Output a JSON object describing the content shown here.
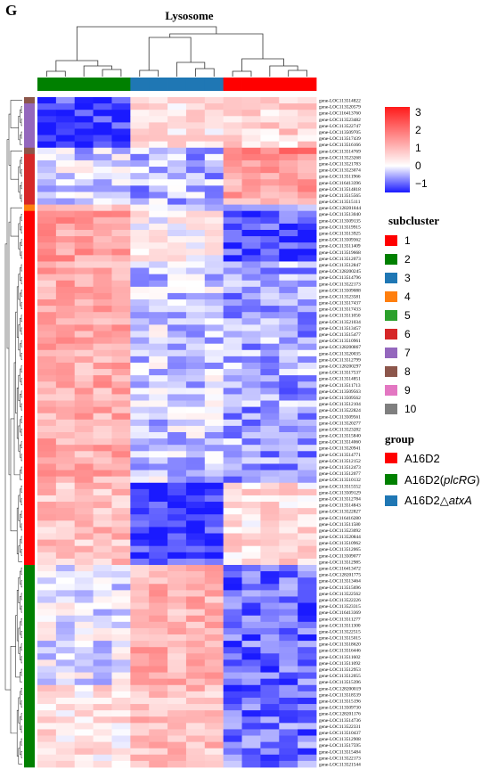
{
  "panel_letter": "G",
  "colors": {
    "low": "#1a1aff",
    "mid": "#ffffff",
    "high": "#ff1a1a",
    "subcluster": {
      "1": "#ff0000",
      "2": "#008000",
      "3": "#1f77b4",
      "4": "#ff7f0e",
      "5": "#2ca02c",
      "6": "#d62728",
      "7": "#9467bd",
      "8": "#8c564b",
      "9": "#e377c2",
      "10": "#7f7f7f"
    },
    "group": {
      "A16D2": "#ff0000",
      "A16D2(plcRG)": "#008000",
      "A16D2△atxA": "#1f77b4"
    }
  },
  "chart_data": {
    "type": "heatmap",
    "title": "Lysosome",
    "color_scale": {
      "min": -1.5,
      "max": 3.3,
      "ticks": [
        "3",
        "2",
        "1",
        "0",
        "−1"
      ],
      "tick_values": [
        3,
        2,
        1,
        0,
        -1
      ]
    },
    "columns": [
      {
        "group": "A16D2(plcRG)"
      },
      {
        "group": "A16D2(plcRG)"
      },
      {
        "group": "A16D2(plcRG)"
      },
      {
        "group": "A16D2(plcRG)"
      },
      {
        "group": "A16D2(plcRG)"
      },
      {
        "group": "A16D2△atxA"
      },
      {
        "group": "A16D2△atxA"
      },
      {
        "group": "A16D2△atxA"
      },
      {
        "group": "A16D2△atxA"
      },
      {
        "group": "A16D2△atxA"
      },
      {
        "group": "A16D2"
      },
      {
        "group": "A16D2"
      },
      {
        "group": "A16D2"
      },
      {
        "group": "A16D2"
      },
      {
        "group": "A16D2"
      }
    ],
    "genes": [
      "gene-LOC113514822",
      "gene-LOC113520579",
      "gene-LOC116413760",
      "gene-LOC113523482",
      "gene-LOC113522747",
      "gene-LOC113509705",
      "gene-LOC113517439",
      "gene-LOC113516166",
      "gene-LOC113514769",
      "gene-LOC113523268",
      "gene-LOC113521783",
      "gene-LOC113523074",
      "gene-LOC113511966",
      "gene-LOC116413396",
      "gene-LOC113514818",
      "gene-LOC113515565",
      "gene-LOC113515111",
      "gene-LOC128201844",
      "gene-LOC113513040",
      "gene-LOC113509135",
      "gene-LOC113519915",
      "gene-LOC113513925",
      "gene-LOC113509362",
      "gene-LOC113511409",
      "gene-LOC113519668",
      "gene-LOC113512073",
      "gene-LOC113512847",
      "gene-LOC128200245",
      "gene-LOC113514796",
      "gene-LOC113522173",
      "gene-LOC113509088",
      "gene-LOC113523581",
      "gene-LOC113517437",
      "gene-LOC113517433",
      "gene-LOC113511050",
      "gene-LOC113521034",
      "gene-LOC113513457",
      "gene-LOC113515477",
      "gene-LOC113510961",
      "gene-LOC128200867",
      "gene-LOC113520035",
      "gene-LOC113512799",
      "gene-LOC128200297",
      "gene-LOC113517537",
      "gene-LOC113514851",
      "gene-LOC113511713",
      "gene-LOC113509563",
      "gene-LOC113509562",
      "gene-LOC113512104",
      "gene-LOC113522824",
      "gene-LOC113509561",
      "gene-LOC113520277",
      "gene-LOC113523282",
      "gene-LOC113515840",
      "gene-LOC113514060",
      "gene-LOC113520941",
      "gene-LOC113514771",
      "gene-LOC113512152",
      "gene-LOC113512473",
      "gene-LOC113512077",
      "gene-LOC113510132",
      "gene-LOC113515552",
      "gene-LOC113509129",
      "gene-LOC113512784",
      "gene-LOC113514843",
      "gene-LOC113522827",
      "gene-LOC116416280",
      "gene-LOC113511580",
      "gene-LOC113523092",
      "gene-LOC113520844",
      "gene-LOC113510962",
      "gene-LOC113512065",
      "gene-LOC113509077",
      "gene-LOC113512985",
      "gene-LOC116413472",
      "gene-LOC128201775",
      "gene-LOC113513464",
      "gene-LOC113515696",
      "gene-LOC113522562",
      "gene-LOC113522226",
      "gene-LOC113523315",
      "gene-LOC116413369",
      "gene-LOC113511277",
      "gene-LOC113511300",
      "gene-LOC113522515",
      "gene-LOC113515015",
      "gene-LOC113518620",
      "gene-LOC113516446",
      "gene-LOC113511602",
      "gene-LOC113511092",
      "gene-LOC113512953",
      "gene-LOC113512055",
      "gene-LOC113515396",
      "gene-LOC128200019",
      "gene-LOC113518539",
      "gene-LOC113515196",
      "gene-LOC113509730",
      "gene-LOC128201176",
      "gene-LOC113514736",
      "gene-LOC113522331",
      "gene-LOC113510437",
      "gene-LOC113512908",
      "gene-LOC113517595",
      "gene-LOC113515484",
      "gene-LOC113522173",
      "gene-LOC113521544"
    ],
    "subcluster_legend": {
      "title": "subcluster",
      "items": [
        "1",
        "2",
        "3",
        "4",
        "5",
        "6",
        "7",
        "8",
        "9",
        "10"
      ]
    },
    "group_legend": {
      "title": "group",
      "items": [
        {
          "prefix": "A16D2",
          "italic": "",
          "suffix": "",
          "key": "A16D2"
        },
        {
          "prefix": "A16D2(",
          "italic": "plcRG",
          "suffix": ")",
          "key": "A16D2(plcRG)"
        },
        {
          "prefix": "A16D2△",
          "italic": "atxA",
          "suffix": "",
          "key": "A16D2△atxA"
        }
      ]
    },
    "row_blocks": [
      {
        "subcluster": "8",
        "start": 0,
        "end": 1,
        "means": [
          -1.2,
          0.5,
          0.6
        ]
      },
      {
        "subcluster": "7",
        "start": 1,
        "end": 8,
        "means": [
          -1.3,
          0.4,
          0.6
        ]
      },
      {
        "subcluster": "8",
        "start": 8,
        "end": 9,
        "means": [
          -0.3,
          -0.6,
          2.0
        ]
      },
      {
        "subcluster": "6",
        "start": 9,
        "end": 17,
        "means": [
          -0.2,
          -0.5,
          1.3
        ]
      },
      {
        "subcluster": "4",
        "start": 17,
        "end": 18,
        "means": [
          0.6,
          -0.4,
          -0.6
        ]
      },
      {
        "subcluster": "1",
        "start": 18,
        "end": 26,
        "means": [
          1.4,
          0.1,
          -1.1
        ]
      },
      {
        "subcluster": "1",
        "start": 26,
        "end": 61,
        "means": [
          1.2,
          -0.3,
          -0.6
        ]
      },
      {
        "subcluster": "1",
        "start": 61,
        "end": 74,
        "means": [
          0.9,
          -1.3,
          0.5
        ]
      },
      {
        "subcluster": "2",
        "start": 74,
        "end": 93,
        "means": [
          -0.1,
          1.1,
          -1.0
        ]
      },
      {
        "subcluster": "2",
        "start": 93,
        "end": 106,
        "means": [
          0.4,
          0.9,
          -0.9
        ]
      }
    ]
  }
}
